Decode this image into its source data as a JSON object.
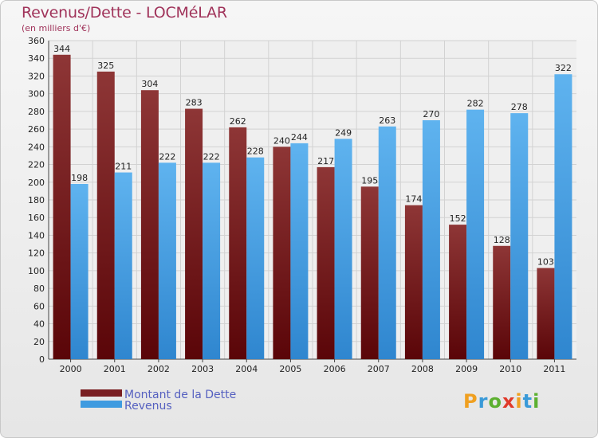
{
  "chart_data": {
    "type": "bar",
    "title": "Revenus/Dette - LOCMéLAR",
    "subtitle": "(en milliers d'€)",
    "categories": [
      "2000",
      "2001",
      "2002",
      "2003",
      "2004",
      "2005",
      "2006",
      "2007",
      "2008",
      "2009",
      "2010",
      "2011"
    ],
    "series": [
      {
        "name": "Montant de la Dette",
        "color": "#7a1f22",
        "values": [
          344,
          325,
          304,
          283,
          262,
          240,
          217,
          195,
          174,
          152,
          128,
          103
        ]
      },
      {
        "name": "Revenus",
        "color": "#3f9be0",
        "values": [
          198,
          211,
          222,
          222,
          228,
          244,
          249,
          263,
          270,
          282,
          278,
          322
        ]
      }
    ],
    "ylim": [
      0,
      360
    ],
    "yticks": [
      0,
      20,
      40,
      60,
      80,
      100,
      120,
      140,
      160,
      180,
      200,
      220,
      240,
      260,
      280,
      300,
      320,
      340,
      360
    ],
    "grid": true,
    "legend_position": "bottom-left"
  },
  "brand": {
    "letters": [
      "P",
      "r",
      "o",
      "x",
      "i",
      "t",
      "i"
    ],
    "colors": [
      "#f0a020",
      "#3a9ad8",
      "#5cb030",
      "#e03a2a",
      "#f0a020",
      "#3a9ad8",
      "#5cb030"
    ]
  }
}
